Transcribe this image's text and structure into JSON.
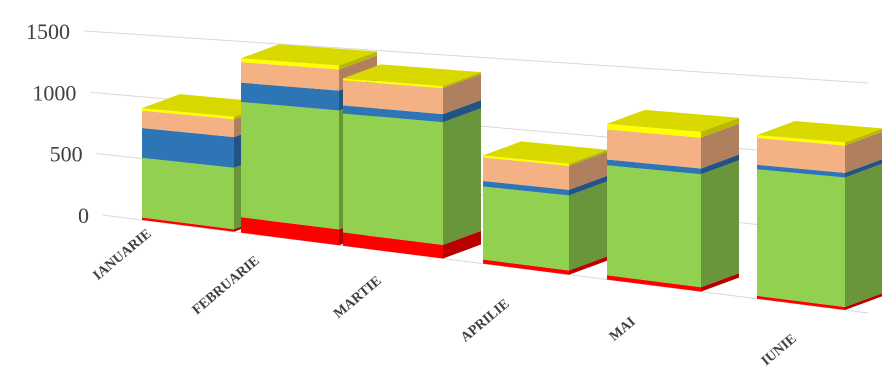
{
  "chart_data": {
    "type": "bar",
    "stacked": true,
    "three_d": true,
    "title": "",
    "xlabel": "",
    "ylabel": "",
    "ylim": [
      0,
      1500
    ],
    "yticks": [
      0,
      500,
      1000,
      1500
    ],
    "grid": true,
    "legend": "none",
    "categories": [
      "IANUARIE",
      "FEBRUARIE",
      "MARTIE",
      "APRILIE",
      "MAI",
      "IUNIE"
    ],
    "series": [
      {
        "color": "#ff0000",
        "values": [
          20,
          120,
          100,
          30,
          30,
          20
        ]
      },
      {
        "color": "#92d050",
        "values": [
          480,
          900,
          900,
          530,
          770,
          850
        ]
      },
      {
        "color": "#2e75b6",
        "values": [
          240,
          150,
          60,
          40,
          40,
          30
        ]
      },
      {
        "color": "#f4b183",
        "values": [
          140,
          160,
          190,
          170,
          210,
          180
        ]
      },
      {
        "color": "#ffff00",
        "values": [
          20,
          30,
          15,
          15,
          40,
          20
        ]
      }
    ]
  }
}
